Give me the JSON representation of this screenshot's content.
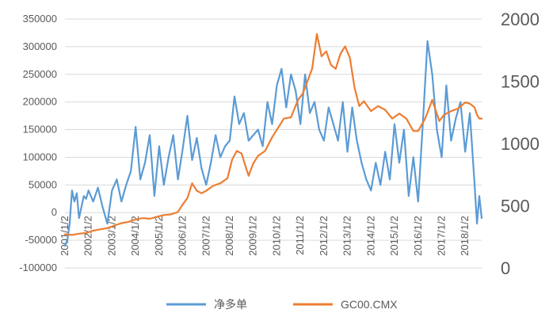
{
  "chart_data": {
    "type": "line",
    "title": "",
    "xlabel": "",
    "ylabel": "",
    "x_tick_labels": [
      "2001/1/2",
      "2002/1/2",
      "2003/1/2",
      "2004/1/2",
      "2005/1/2",
      "2006/1/2",
      "2007/1/2",
      "2008/1/2",
      "2009/1/2",
      "2010/1/2",
      "2011/1/2",
      "2012/1/2",
      "2013/1/2",
      "2014/1/2",
      "2015/1/2",
      "2016/1/2",
      "2017/1/2",
      "2018/1/2"
    ],
    "y_left": {
      "min": -100000,
      "max": 350000,
      "step": 50000,
      "tick_labels": [
        "-100000",
        "-50000",
        "0",
        "50000",
        "100000",
        "150000",
        "200000",
        "250000",
        "300000",
        "350000"
      ]
    },
    "y_right": {
      "min": 0,
      "max": 2000,
      "step": 500,
      "tick_labels": [
        "0",
        "500",
        "1000",
        "1500",
        "2000"
      ]
    },
    "xlim": [
      2001.0,
      2018.7
    ],
    "grid": true,
    "legend_position": "bottom",
    "colors": {
      "net_long": "#5b9bd5",
      "gold": "#ed7d31",
      "grid": "#d9d9d9",
      "text": "#595959"
    },
    "series": [
      {
        "name": "净多单",
        "axis": "left",
        "color": "#5b9bd5",
        "x": [
          2001.0,
          2001.1,
          2001.2,
          2001.3,
          2001.4,
          2001.5,
          2001.6,
          2001.7,
          2001.8,
          2001.9,
          2002.0,
          2002.2,
          2002.4,
          2002.6,
          2002.8,
          2003.0,
          2003.2,
          2003.4,
          2003.6,
          2003.8,
          2004.0,
          2004.2,
          2004.4,
          2004.6,
          2004.8,
          2005.0,
          2005.2,
          2005.4,
          2005.6,
          2005.8,
          2006.0,
          2006.2,
          2006.4,
          2006.6,
          2006.8,
          2007.0,
          2007.2,
          2007.4,
          2007.6,
          2007.8,
          2008.0,
          2008.2,
          2008.4,
          2008.6,
          2008.8,
          2009.0,
          2009.2,
          2009.4,
          2009.6,
          2009.8,
          2010.0,
          2010.2,
          2010.4,
          2010.6,
          2010.8,
          2011.0,
          2011.2,
          2011.4,
          2011.6,
          2011.8,
          2012.0,
          2012.2,
          2012.4,
          2012.6,
          2012.8,
          2013.0,
          2013.2,
          2013.4,
          2013.6,
          2013.8,
          2014.0,
          2014.2,
          2014.4,
          2014.6,
          2014.8,
          2015.0,
          2015.2,
          2015.4,
          2015.6,
          2015.8,
          2016.0,
          2016.2,
          2016.4,
          2016.6,
          2016.8,
          2017.0,
          2017.2,
          2017.4,
          2017.6,
          2017.8,
          2018.0,
          2018.2,
          2018.4,
          2018.5,
          2018.6,
          2018.7
        ],
        "values": [
          -60000,
          -50000,
          -20000,
          40000,
          20000,
          35000,
          -10000,
          10000,
          30000,
          25000,
          40000,
          20000,
          45000,
          10000,
          -20000,
          40000,
          60000,
          20000,
          50000,
          75000,
          155000,
          60000,
          90000,
          140000,
          30000,
          120000,
          50000,
          100000,
          140000,
          60000,
          115000,
          175000,
          95000,
          135000,
          80000,
          50000,
          90000,
          140000,
          100000,
          120000,
          130000,
          210000,
          160000,
          180000,
          130000,
          140000,
          150000,
          120000,
          200000,
          160000,
          230000,
          260000,
          190000,
          250000,
          220000,
          160000,
          250000,
          180000,
          200000,
          150000,
          130000,
          190000,
          160000,
          130000,
          200000,
          110000,
          190000,
          130000,
          90000,
          60000,
          40000,
          90000,
          50000,
          110000,
          60000,
          160000,
          90000,
          150000,
          30000,
          100000,
          20000,
          160000,
          310000,
          250000,
          150000,
          100000,
          230000,
          130000,
          170000,
          200000,
          110000,
          180000,
          50000,
          -20000,
          30000,
          -10000
        ]
      },
      {
        "name": "GC00.CMX",
        "axis": "right",
        "color": "#ed7d31",
        "x": [
          2001.0,
          2001.3,
          2001.6,
          2001.9,
          2002.2,
          2002.5,
          2002.8,
          2003.1,
          2003.4,
          2003.7,
          2004.0,
          2004.3,
          2004.6,
          2004.9,
          2005.2,
          2005.5,
          2005.8,
          2006.0,
          2006.2,
          2006.4,
          2006.6,
          2006.8,
          2007.0,
          2007.3,
          2007.6,
          2007.9,
          2008.1,
          2008.3,
          2008.5,
          2008.7,
          2008.8,
          2009.0,
          2009.2,
          2009.5,
          2009.8,
          2010.0,
          2010.3,
          2010.6,
          2010.9,
          2011.1,
          2011.3,
          2011.5,
          2011.7,
          2011.9,
          2012.1,
          2012.3,
          2012.5,
          2012.7,
          2012.9,
          2013.1,
          2013.3,
          2013.5,
          2013.7,
          2014.0,
          2014.3,
          2014.6,
          2014.9,
          2015.2,
          2015.5,
          2015.8,
          2016.0,
          2016.3,
          2016.6,
          2016.9,
          2017.1,
          2017.4,
          2017.7,
          2018.0,
          2018.2,
          2018.4,
          2018.5,
          2018.6,
          2018.7
        ],
        "values": [
          270,
          265,
          275,
          280,
          300,
          310,
          320,
          340,
          360,
          370,
          390,
          400,
          395,
          410,
          425,
          430,
          450,
          510,
          560,
          680,
          620,
          600,
          620,
          660,
          680,
          720,
          870,
          940,
          920,
          800,
          740,
          840,
          900,
          940,
          1050,
          1110,
          1200,
          1210,
          1350,
          1400,
          1500,
          1600,
          1880,
          1700,
          1740,
          1630,
          1600,
          1720,
          1780,
          1690,
          1450,
          1300,
          1340,
          1260,
          1300,
          1270,
          1200,
          1240,
          1200,
          1100,
          1100,
          1200,
          1350,
          1180,
          1230,
          1260,
          1280,
          1330,
          1320,
          1290,
          1230,
          1200,
          1200
        ]
      }
    ]
  },
  "legend": {
    "items": [
      "净多单",
      "GC00.CMX"
    ]
  }
}
